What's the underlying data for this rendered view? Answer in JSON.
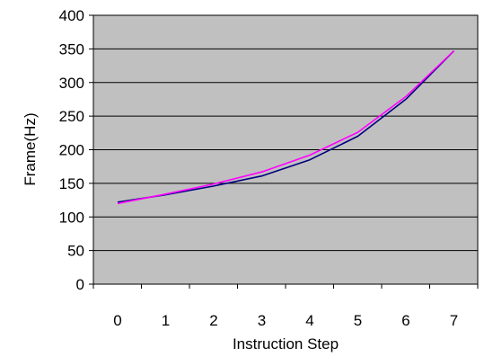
{
  "chart_data": {
    "type": "line",
    "title": "",
    "xlabel": "Instruction Step",
    "ylabel": "Frame(Hz)",
    "x": [
      0,
      1,
      2,
      3,
      4,
      5,
      6,
      7
    ],
    "xlim": [
      0,
      7
    ],
    "ylim": [
      0,
      400
    ],
    "yticks": [
      0,
      50,
      100,
      150,
      200,
      250,
      300,
      350,
      400
    ],
    "grid": true,
    "legend": "none",
    "plot_background": "#c0c0c0",
    "series": [
      {
        "color": "#00007f",
        "values": [
          122,
          133,
          146,
          161,
          185,
          220,
          275,
          347
        ]
      },
      {
        "color": "#ff00ff",
        "values": [
          120,
          134,
          149,
          167,
          192,
          226,
          279,
          347
        ]
      }
    ]
  }
}
